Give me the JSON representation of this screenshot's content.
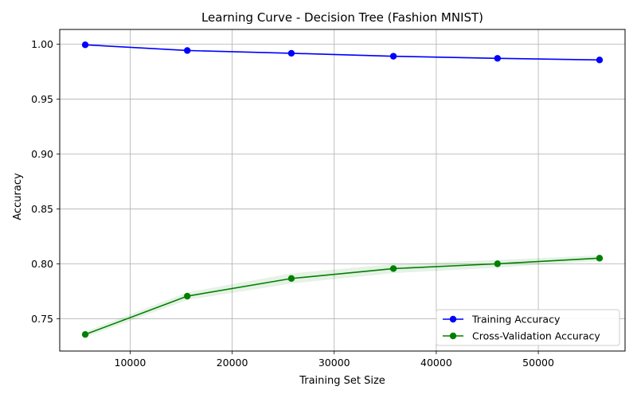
{
  "chart_data": {
    "type": "line",
    "title": "Learning Curve - Decision Tree (Fashion MNIST)",
    "xlabel": "Training Set Size",
    "ylabel": "Accuracy",
    "xlim": [
      3100,
      58500
    ],
    "ylim": [
      0.7205,
      1.0135
    ],
    "xticks": [
      10000,
      20000,
      30000,
      40000,
      50000
    ],
    "xtick_labels": [
      "10000",
      "20000",
      "30000",
      "40000",
      "50000"
    ],
    "yticks": [
      0.75,
      0.8,
      0.85,
      0.9,
      0.95,
      1.0
    ],
    "ytick_labels": [
      "0.75",
      "0.80",
      "0.85",
      "0.90",
      "0.95",
      "1.00"
    ],
    "grid": true,
    "legend_position": "lower-right",
    "x": [
      5600,
      15600,
      25800,
      35800,
      46000,
      56000
    ],
    "series": [
      {
        "name": "Training Accuracy",
        "color": "#0000ff",
        "band_color": "#0000ff",
        "values": [
          0.9995,
          0.9943,
          0.9918,
          0.9891,
          0.9872,
          0.9857
        ],
        "lower": [
          0.9993,
          0.9938,
          0.9912,
          0.9884,
          0.9865,
          0.9851
        ],
        "upper": [
          0.9997,
          0.9948,
          0.9924,
          0.9898,
          0.9879,
          0.9863
        ]
      },
      {
        "name": "Cross-Validation Accuracy",
        "color": "#008000",
        "band_color": "#008000",
        "values": [
          0.7356,
          0.7705,
          0.7866,
          0.7956,
          0.8,
          0.8051
        ],
        "lower": [
          0.733,
          0.767,
          0.782,
          0.7915,
          0.7965,
          0.8025
        ],
        "upper": [
          0.7382,
          0.774,
          0.7912,
          0.7997,
          0.8035,
          0.8077
        ]
      }
    ]
  }
}
